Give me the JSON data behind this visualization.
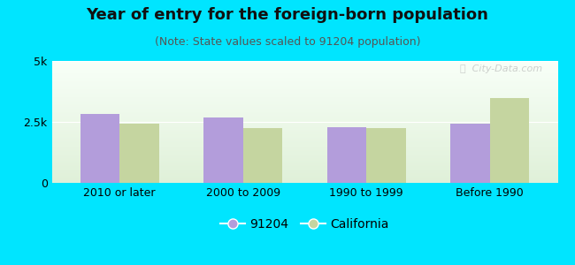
{
  "title": "Year of entry for the foreign-born population",
  "subtitle": "(Note: State values scaled to 91204 population)",
  "categories": [
    "2010 or later",
    "2000 to 2009",
    "1990 to 1999",
    "Before 1990"
  ],
  "values_91204": [
    2820,
    2680,
    2280,
    2420
  ],
  "values_california": [
    2430,
    2260,
    2240,
    3480
  ],
  "color_91204": "#b39ddb",
  "color_california": "#c5d5a0",
  "background_outer": "#00e5ff",
  "ylim": [
    0,
    5000
  ],
  "ytick_labels": [
    "0",
    "2.5k",
    "5k"
  ],
  "legend_label_91204": "91204",
  "legend_label_california": "California",
  "bar_width": 0.32,
  "title_fontsize": 13,
  "subtitle_fontsize": 9,
  "tick_fontsize": 9,
  "legend_fontsize": 10
}
